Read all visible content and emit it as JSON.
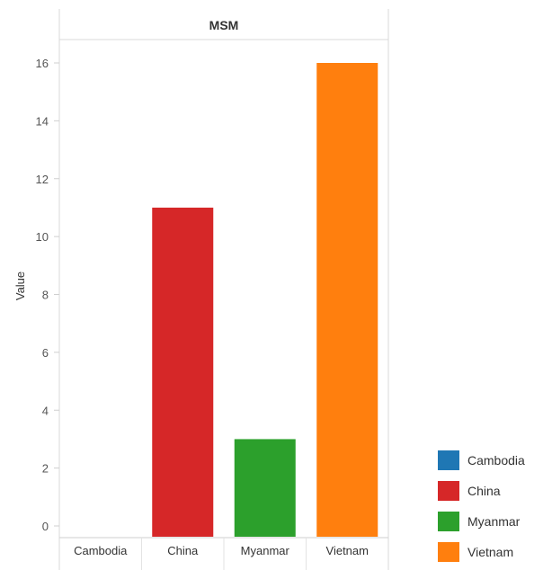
{
  "chart_data": {
    "type": "bar",
    "title": "MSM",
    "xlabel": "",
    "ylabel": "Value",
    "categories": [
      "Cambodia",
      "China",
      "Myanmar",
      "Vietnam"
    ],
    "values": [
      0,
      11,
      3,
      16
    ],
    "ylim": [
      0,
      17
    ],
    "yticks": [
      "0",
      "2",
      "4",
      "6",
      "8",
      "10",
      "12",
      "14",
      "16"
    ],
    "grid": false,
    "legend_position": "bottom-right",
    "legend": [
      {
        "label": "Cambodia",
        "color": "#1f77b4"
      },
      {
        "label": "China",
        "color": "#d62728"
      },
      {
        "label": "Myanmar",
        "color": "#2ca02c"
      },
      {
        "label": "Vietnam",
        "color": "#ff7f0e"
      }
    ],
    "colors": [
      "#1f77b4",
      "#d62728",
      "#2ca02c",
      "#ff7f0e"
    ]
  }
}
